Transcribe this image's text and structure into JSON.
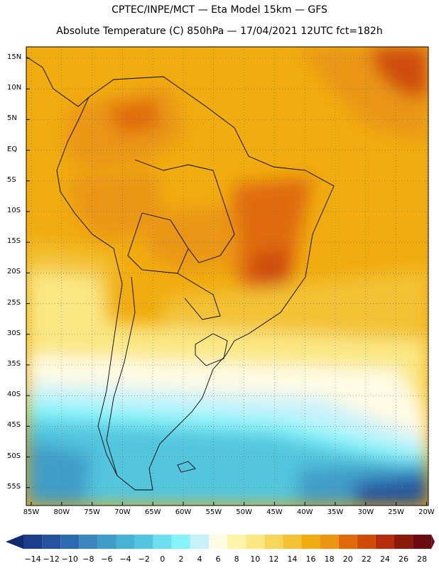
{
  "header": {
    "line1": "CPTEC/INPE/MCT —  Eta Model 15km — GFS",
    "line2": "Absolute Temperature (C) 850hPa — 17/04/2021 12UTC fct=182h"
  },
  "axes": {
    "lat_labels": [
      "15N",
      "10N",
      "5N",
      "EQ",
      "5S",
      "10S",
      "15S",
      "20S",
      "25S",
      "30S",
      "35S",
      "40S",
      "45S",
      "50S",
      "55S"
    ],
    "lon_labels": [
      "85W",
      "80W",
      "75W",
      "70W",
      "65W",
      "60W",
      "55W",
      "50W",
      "45W",
      "40W",
      "35W",
      "30W",
      "25W",
      "20W"
    ]
  },
  "colorbar": {
    "labels": [
      "-14",
      "-12",
      "-10",
      "-8",
      "-6",
      "-4",
      "-2",
      "0",
      "2",
      "4",
      "6",
      "8",
      "10",
      "12",
      "14",
      "16",
      "18",
      "20",
      "22",
      "24",
      "26",
      "28"
    ],
    "colors": [
      "#1e3c8c",
      "#24539f",
      "#2d6bb0",
      "#3c86c0",
      "#3f9dc8",
      "#47b2d4",
      "#52c6de",
      "#6fdff0",
      "#86f5fb",
      "#c8f2fb",
      "#fffbe4",
      "#fff4a8",
      "#fbe783",
      "#f8d65a",
      "#f3c234",
      "#f1ac0f",
      "#ea9613",
      "#e06a08",
      "#cf4b08",
      "#b52d0a",
      "#8a1a0a",
      "#6b0a10"
    ]
  },
  "map": {
    "colors": {
      "hot_dark": "#cf4b08",
      "hot": "#ea9613",
      "warm": "#f1ac0f",
      "mild": "#f3c234",
      "cool_yellow": "#fbe783",
      "pale": "#fffbe4",
      "light_cyan": "#c8f2fb",
      "cyan": "#86f5fb",
      "blue1": "#52c6de",
      "blue2": "#3f9dc8",
      "deep_blue": "#24539f"
    }
  }
}
